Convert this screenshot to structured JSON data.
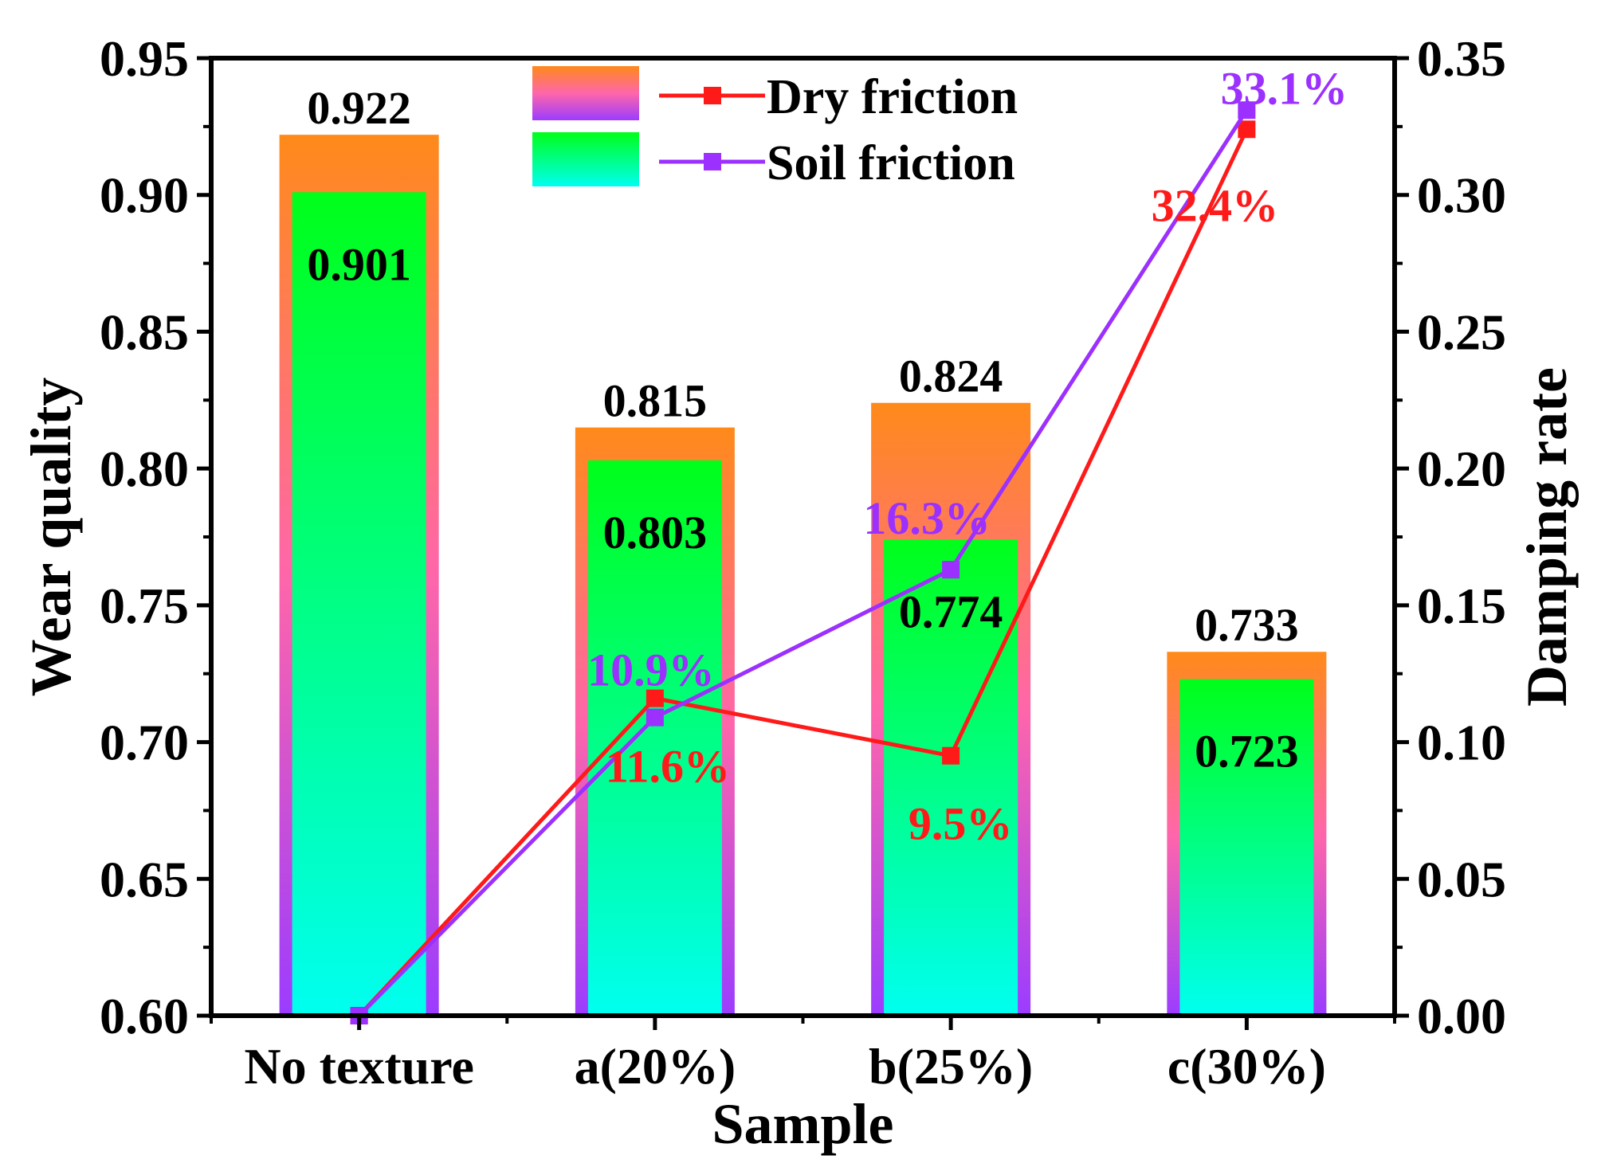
{
  "chart_data": {
    "type": "bar",
    "xlabel": "Sample",
    "ylabel": "Wear quality",
    "y2label": "Damping rate",
    "categories": [
      "No texture",
      "a(20%)",
      "b(25%)",
      "c(30%)"
    ],
    "ylim": [
      0.6,
      0.95
    ],
    "yticks": [
      "0.60",
      "0.65",
      "0.70",
      "0.75",
      "0.80",
      "0.85",
      "0.90",
      "0.95"
    ],
    "y2lim": [
      0.0,
      0.35
    ],
    "y2ticks": [
      "0.00",
      "0.05",
      "0.10",
      "0.15",
      "0.20",
      "0.25",
      "0.30",
      "0.35"
    ],
    "bar_series": [
      {
        "name": "Dry friction",
        "values": [
          0.922,
          0.815,
          0.824,
          0.733
        ],
        "labels": [
          "0.922",
          "0.815",
          "0.824",
          "0.733"
        ],
        "gradient": [
          "#ff8a1a",
          "#ff66aa",
          "#9b3cff"
        ]
      },
      {
        "name": "Soil friction",
        "values": [
          0.901,
          0.803,
          0.774,
          0.723
        ],
        "labels": [
          "0.901",
          "0.803",
          "0.774",
          "0.723"
        ],
        "gradient": [
          "#00ff1a",
          "#00fff0"
        ]
      }
    ],
    "line_series": [
      {
        "name": "Dry friction",
        "color": "#ff1a1a",
        "values": [
          0.0,
          0.116,
          0.095,
          0.324
        ],
        "labels": [
          "",
          "11.6%",
          "9.5%",
          "32.4%"
        ]
      },
      {
        "name": "Soil friction",
        "color": "#9b30ff",
        "values": [
          0.0,
          0.109,
          0.163,
          0.331
        ],
        "labels": [
          "",
          "10.9%",
          "16.3%",
          "33.1%"
        ]
      }
    ],
    "legend": {
      "position": "top-center",
      "entries": [
        "Dry friction",
        "Soil friction"
      ]
    }
  }
}
